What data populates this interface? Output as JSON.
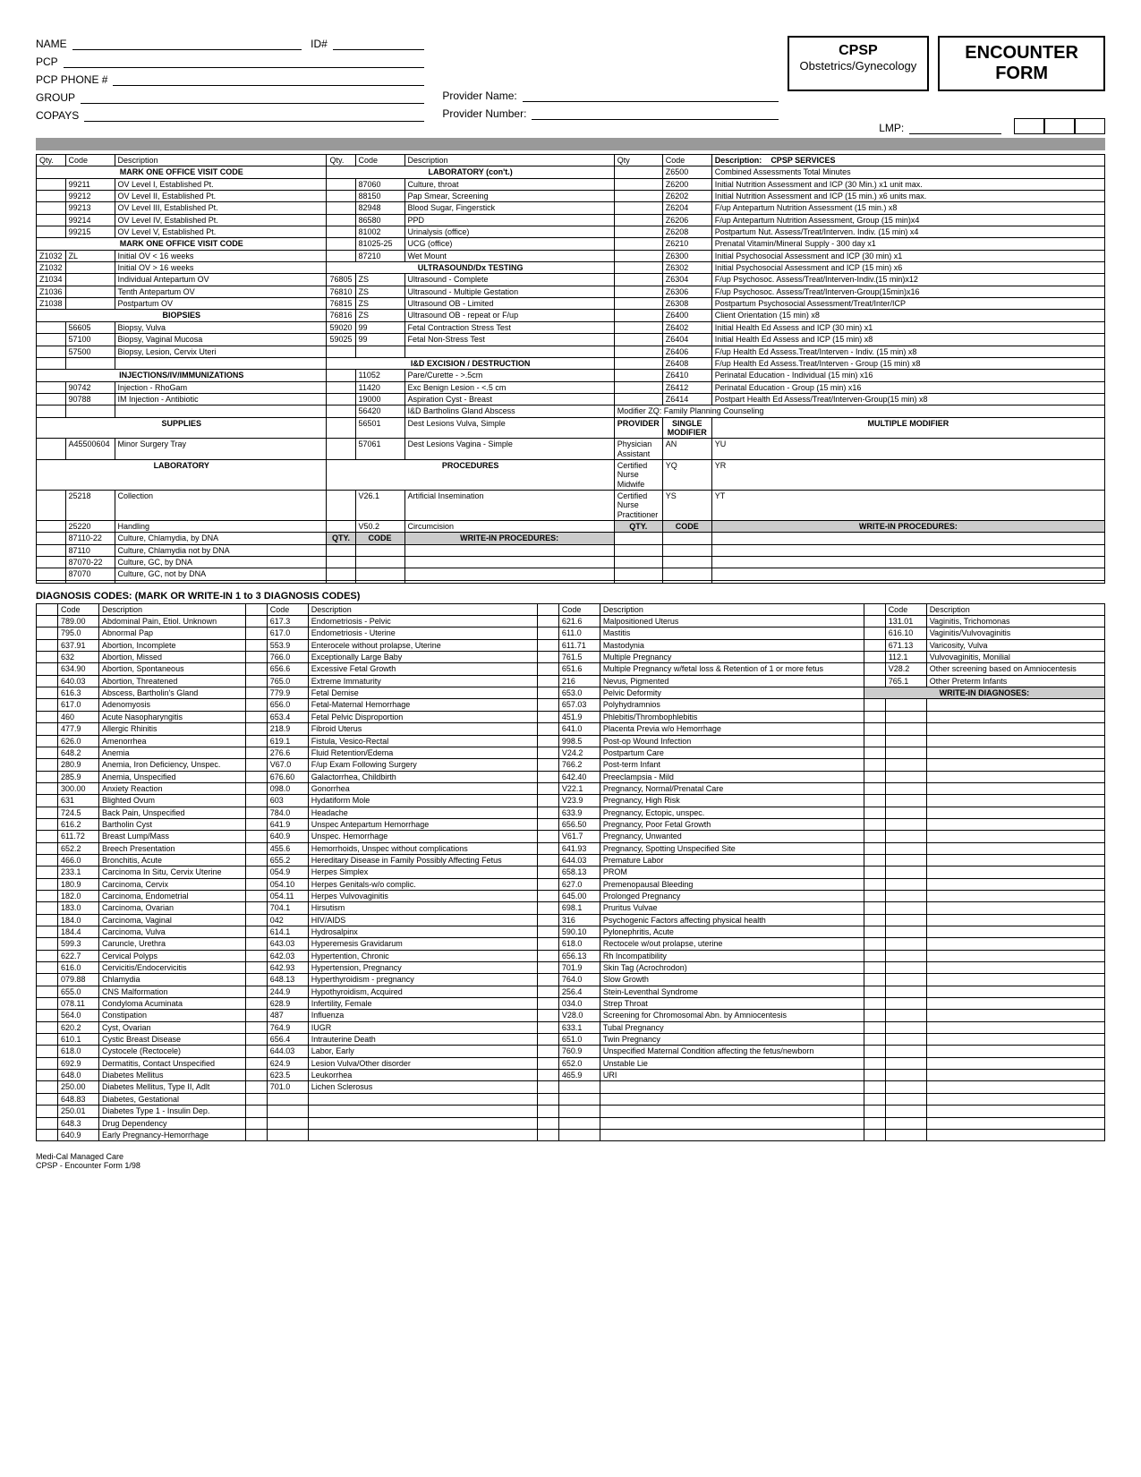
{
  "header": {
    "name_label": "NAME",
    "id_label": "ID#",
    "pcp_label": "PCP",
    "pcp_phone_label": "PCP PHONE #",
    "group_label": "GROUP",
    "copays_label": "COPAYS",
    "provider_name_label": "Provider Name:",
    "provider_number_label": "Provider Number:",
    "lmp_label": "LMP:",
    "cpsp_title": "CPSP",
    "cpsp_sub": "Obstetrics/Gynecology",
    "encounter_title": "ENCOUNTER FORM"
  },
  "col_headers": {
    "qty": "Qty.",
    "code": "Code",
    "desc": "Description",
    "qty2": "Qty",
    "cpsp": "CPSP SERVICES"
  },
  "sections": {
    "mark_one_1": "MARK ONE OFFICE VISIT CODE",
    "mark_one_2": "MARK ONE OFFICE VISIT CODE",
    "biopsies": "BIOPSIES",
    "injections": "INJECTIONS/IV/IMMUNIZATIONS",
    "supplies": "SUPPLIES",
    "laboratory": "LABORATORY",
    "lab_cont": "LABORATORY (con't.)",
    "ultrasound": "ULTRASOUND/Dx TESTING",
    "id_exc": "I&D EXCISION / DESTRUCTION",
    "procedures": "PROCEDURES",
    "write_in": "WRITE-IN PROCEDURES:",
    "provider": "PROVIDER",
    "single_mod": "SINGLE MODIFIER",
    "mult_mod": "MULTIPLE MODIFIER"
  },
  "ov_codes": [
    [
      "99211",
      "OV Level I, Established Pt."
    ],
    [
      "99212",
      "OV Level II, Established Pt."
    ],
    [
      "99213",
      "OV Level III, Established Pt."
    ],
    [
      "99214",
      "OV Level IV, Established Pt."
    ],
    [
      "99215",
      "OV Level V, Established Pt."
    ]
  ],
  "visit_codes": [
    [
      "Z1032",
      "ZL",
      "Initial OV < 16 weeks"
    ],
    [
      "Z1032",
      "",
      "Initial OV > 16 weeks"
    ],
    [
      "Z1034",
      "",
      "Individual Antepartum OV"
    ],
    [
      "Z1036",
      "",
      "Tenth Antepartum OV"
    ],
    [
      "Z1038",
      "",
      "Postpartum OV"
    ]
  ],
  "biopsies_rows": [
    [
      "56605",
      "Biopsy, Vulva"
    ],
    [
      "57100",
      "Biopsy, Vaginal Mucosa"
    ],
    [
      "57500",
      "Biopsy, Lesion, Cervix Uteri"
    ]
  ],
  "inj_rows": [
    [
      "90742",
      "Injection - RhoGam"
    ],
    [
      "90788",
      "IM Injection - Antibiotic"
    ]
  ],
  "supplies_rows": [
    [
      "A45500604",
      "Minor Surgery Tray"
    ]
  ],
  "lab_rows_left": [
    [
      "25218",
      "Collection"
    ],
    [
      "25220",
      "Handling"
    ],
    [
      "87110-22",
      "Culture, Chlamydia, by DNA"
    ],
    [
      "87110",
      "Culture, Chlamydia not by DNA"
    ],
    [
      "87070-22",
      "Culture, GC, by DNA"
    ],
    [
      "87070",
      "Culture, GC, not by DNA"
    ]
  ],
  "lab_cont_rows": [
    [
      "87060",
      "",
      "Culture, throat"
    ],
    [
      "88150",
      "",
      "Pap Smear, Screening"
    ],
    [
      "82948",
      "",
      "Blood Sugar, Fingerstick"
    ],
    [
      "86580",
      "",
      "PPD"
    ],
    [
      "81002",
      "",
      "Urinalysis (office)"
    ],
    [
      "81025-25",
      "",
      "UCG (office)"
    ],
    [
      "87210",
      "",
      "Wet Mount"
    ]
  ],
  "us_rows": [
    [
      "76805",
      "ZS",
      "Ultrasound - Complete"
    ],
    [
      "76810",
      "ZS",
      "Ultrasound - Multiple Gestation"
    ],
    [
      "76815",
      "ZS",
      "Ultrasound OB - Limited"
    ],
    [
      "76816",
      "ZS",
      "Ultrasound OB - repeat or F/up"
    ],
    [
      "59020",
      "99",
      "Fetal Contraction Stress Test"
    ],
    [
      "59025",
      "99",
      "Fetal Non-Stress Test"
    ]
  ],
  "id_rows": [
    [
      "11052",
      "Pare/Curette - >.5cm"
    ],
    [
      "11420",
      "Exc Benign Lesion - <.5 cm"
    ],
    [
      "19000",
      "Aspiration Cyst - Breast"
    ],
    [
      "56420",
      "I&D Bartholins Gland Abscess"
    ],
    [
      "56501",
      "Dest Lesions Vulva, Simple"
    ],
    [
      "57061",
      "Dest Lesions Vagina - Simple"
    ]
  ],
  "proc_rows": [
    [
      "V26.1",
      "Artificial Insemination"
    ],
    [
      "V50.2",
      "Circumcision"
    ]
  ],
  "cpsp_rows": [
    [
      "Z6500",
      "Combined Assessments Total Minutes"
    ],
    [
      "Z6200",
      "Initial Nutrition Assessment and ICP (30 Min.) x1 unit max."
    ],
    [
      "Z6202",
      "Initial Nutrition Assessment and ICP (15 min.) x6 units max."
    ],
    [
      "Z6204",
      "F/up Antepartum Nutrition Assessment (15 min.) x8"
    ],
    [
      "Z6206",
      "F/up Antepartum Nutrition Assessment, Group (15 min)x4"
    ],
    [
      "Z6208",
      "Postpartum Nut. Assess/Treat/Interven. Indiv. (15 min) x4"
    ],
    [
      "Z6210",
      "Prenatal Vitamin/Mineral Supply - 300 day x1"
    ],
    [
      "Z6300",
      "Initial Psychosocial Assessment and ICP (30 min) x1"
    ],
    [
      "Z6302",
      "Initial Psychosocial Assessment and ICP (15 min) x6"
    ],
    [
      "Z6304",
      "F/up Psychosoc. Assess/Treat/Interven-Indiv.(15 min)x12"
    ],
    [
      "Z6306",
      "F/up Psychosoc. Assess/Treat/Interven-Group(15min)x16"
    ],
    [
      "Z6308",
      "Postpartum Psychosocial Assessment/Treat/Inter/ICP"
    ],
    [
      "Z6400",
      "Client Orientation (15 min) x8"
    ],
    [
      "Z6402",
      "Initial Health Ed Assess and ICP (30 min) x1"
    ],
    [
      "Z6404",
      "Initial Health Ed Assess and ICP (15 min) x8"
    ],
    [
      "Z6406",
      "F/up Health Ed Assess.Treat/Interven - Indiv. (15 min)  x8"
    ],
    [
      "Z6408",
      "F/up Health Ed Assess.Treat/Interven - Group (15 min)  x8"
    ],
    [
      "Z6410",
      "Perinatal Education - Individual (15 min) x16"
    ],
    [
      "Z6412",
      "Perinatal Education - Group (15 min) x16"
    ],
    [
      "Z6414",
      "Postpart Health Ed Assess/Treat/Interven-Group(15 min) x8"
    ]
  ],
  "modifier_note": "Modifier ZQ:  Family Planning Counseling",
  "providers": [
    [
      "Physician Assistant",
      "AN",
      "YU"
    ],
    [
      "Certified Nurse Midwife",
      "YQ",
      "YR"
    ],
    [
      "Certified Nurse Practitioner",
      "YS",
      "YT"
    ]
  ],
  "diag_title": "DIAGNOSIS CODES:   (MARK OR WRITE-IN 1 to 3 DIAGNOSIS CODES)",
  "diag_headers": {
    "code": "Code",
    "desc": "Description"
  },
  "diag_col1": [
    [
      "789.00",
      "Abdominal Pain, Etiol. Unknown"
    ],
    [
      "795.0",
      "Abnormal Pap"
    ],
    [
      "637.91",
      "Abortion, Incomplete"
    ],
    [
      "632",
      "Abortion, Missed"
    ],
    [
      "634.90",
      "Abortion, Spontaneous"
    ],
    [
      "640.03",
      "Abortion, Threatened"
    ],
    [
      "616.3",
      "Abscess, Bartholin's Gland"
    ],
    [
      "617.0",
      "Adenomyosis"
    ],
    [
      "460",
      "Acute Nasopharyngitis"
    ],
    [
      "477.9",
      "Allergic  Rhinitis"
    ],
    [
      "626.0",
      "Amenorrhea"
    ],
    [
      "648.2",
      "Anemia"
    ],
    [
      "280.9",
      "Anemia, Iron Deficiency, Unspec."
    ],
    [
      "285.9",
      "Anemia, Unspecified"
    ],
    [
      "300.00",
      "Anxiety Reaction"
    ],
    [
      "631",
      "Blighted Ovum"
    ],
    [
      "724.5",
      "Back Pain, Unspecified"
    ],
    [
      "616.2",
      "Bartholin Cyst"
    ],
    [
      "611.72",
      "Breast Lump/Mass"
    ],
    [
      "652.2",
      "Breech Presentation"
    ],
    [
      "466.0",
      "Bronchitis, Acute"
    ],
    [
      "233.1",
      "Carcinoma In Situ, Cervix Uterine"
    ],
    [
      "180.9",
      "Carcinoma, Cervix"
    ],
    [
      "182.0",
      "Carcinoma, Endometrial"
    ],
    [
      "183.0",
      "Carcinoma, Ovarian"
    ],
    [
      "184.0",
      "Carcinoma, Vaginal"
    ],
    [
      "184.4",
      "Carcinoma, Vulva"
    ],
    [
      "599.3",
      "Caruncle, Urethra"
    ],
    [
      "622.7",
      "Cervical Polyps"
    ],
    [
      "616.0",
      "Cervicitis/Endocervicitis"
    ],
    [
      "079.88",
      "Chlamydia"
    ],
    [
      "655.0",
      "CNS Malformation"
    ],
    [
      "078.11",
      "Condyloma Acuminata"
    ],
    [
      "564.0",
      "Constipation"
    ],
    [
      "620.2",
      "Cyst, Ovarian"
    ],
    [
      "610.1",
      "Cystic Breast Disease"
    ],
    [
      "618.0",
      "Cystocele (Rectocele)"
    ],
    [
      "692.9",
      "Dermatitis, Contact Unspecified"
    ],
    [
      "648.0",
      "Diabetes Mellitus"
    ],
    [
      "250.00",
      "Diabetes Mellitus, Type II, Adlt"
    ],
    [
      "648.83",
      "Diabetes, Gestational"
    ],
    [
      "250.01",
      "Diabetes Type 1 - Insulin Dep."
    ],
    [
      "648.3",
      "Drug Dependency"
    ],
    [
      "640.9",
      "Early Pregnancy-Hemorrhage"
    ]
  ],
  "diag_col2": [
    [
      "617.3",
      "Endometriosis - Pelvic"
    ],
    [
      "617.0",
      "Endometriosis - Uterine"
    ],
    [
      "553.9",
      "Enterocele without prolapse, Uterine"
    ],
    [
      "766.0",
      "Exceptionally Large Baby"
    ],
    [
      "656.6",
      "Excessive Fetal Growth"
    ],
    [
      "765.0",
      "Extreme Immaturity"
    ],
    [
      "779.9",
      "Fetal Demise"
    ],
    [
      "656.0",
      "Fetal-Maternal Hemorrhage"
    ],
    [
      "653.4",
      "Fetal Pelvic Disproportion"
    ],
    [
      "218.9",
      "Fibroid Uterus"
    ],
    [
      "619.1",
      "Fistula, Vesico-Rectal"
    ],
    [
      "276.6",
      "Fluid Retention/Edema"
    ],
    [
      "V67.0",
      "F/up Exam Following Surgery"
    ],
    [
      "676.60",
      "Galactorrhea, Childbirth"
    ],
    [
      "098.0",
      "Gonorrhea"
    ],
    [
      "603",
      "Hydatiform Mole"
    ],
    [
      "784.0",
      "Headache"
    ],
    [
      "641.9",
      "Unspec Antepartum Hemorrhage"
    ],
    [
      "640.9",
      "Unspec. Hemorrhage"
    ],
    [
      "455.6",
      "Hemorrhoids, Unspec without complications"
    ],
    [
      "655.2",
      "Hereditary Disease in Family Possibly Affecting Fetus"
    ],
    [
      "054.9",
      "Herpes Simplex"
    ],
    [
      "054.10",
      "Herpes Genitals-w/o complic."
    ],
    [
      "054.11",
      "Herpes Vulvovaginitis"
    ],
    [
      "704.1",
      "Hirsutism"
    ],
    [
      "042",
      "HIV/AIDS"
    ],
    [
      "614.1",
      "Hydrosalpinx"
    ],
    [
      "643.03",
      "Hyperemesis Gravidarum"
    ],
    [
      "642.03",
      "Hypertention, Chronic"
    ],
    [
      "642.93",
      "Hypertension, Pregnancy"
    ],
    [
      "648.13",
      "Hyperthyroidism - pregnancy"
    ],
    [
      "244.9",
      "Hypothyroidism, Acquired"
    ],
    [
      "628.9",
      "Infertility, Female"
    ],
    [
      "487",
      "Influenza"
    ],
    [
      "764.9",
      "IUGR"
    ],
    [
      "656.4",
      "Intrauterine Death"
    ],
    [
      "644.03",
      "Labor, Early"
    ],
    [
      "624.9",
      "Lesion Vulva/Other disorder"
    ],
    [
      "623.5",
      "Leukorrhea"
    ],
    [
      "701.0",
      "Lichen Sclerosus"
    ]
  ],
  "diag_col3": [
    [
      "621.6",
      "Malpositioned Uterus"
    ],
    [
      "611.0",
      "Mastitis"
    ],
    [
      "611.71",
      "Mastodynia"
    ],
    [
      "761.5",
      "Multiple Pregnancy"
    ],
    [
      "651.6",
      "Multiple Pregnancy w/fetal loss & Retention of 1 or more fetus"
    ],
    [
      "216",
      "Nevus, Pigmented"
    ],
    [
      "653.0",
      "Pelvic Deformity"
    ],
    [
      "657.03",
      "Polyhydramnios"
    ],
    [
      "451.9",
      "Phlebitis/Thrombophlebitis"
    ],
    [
      "641.0",
      "Placenta Previa w/o Hemorrhage"
    ],
    [
      "998.5",
      "Post-op Wound Infection"
    ],
    [
      "V24.2",
      "Postpartum Care"
    ],
    [
      "766.2",
      "Post-term Infant"
    ],
    [
      "642.40",
      "Preeclampsia - Mild"
    ],
    [
      "V22.1",
      "Pregnancy, Normal/Prenatal Care"
    ],
    [
      "V23.9",
      "Pregnancy, High Risk"
    ],
    [
      "633.9",
      "Pregnancy, Ectopic, unspec."
    ],
    [
      "656.50",
      "Pregnancy, Poor Fetal Growth"
    ],
    [
      "V61.7",
      "Pregnancy, Unwanted"
    ],
    [
      "641.93",
      "Pregnancy, Spotting Unspecified Site"
    ],
    [
      "644.03",
      "Premature Labor"
    ],
    [
      "658.13",
      "PROM"
    ],
    [
      "627.0",
      "Premenopausal Bleeding"
    ],
    [
      "645.00",
      "Prolonged Pregnancy"
    ],
    [
      "698.1",
      "Pruritus Vulvae"
    ],
    [
      "316",
      "Psychogenic Factors affecting physical health"
    ],
    [
      "590.10",
      "Pylonephritis, Acute"
    ],
    [
      "618.0",
      "Rectocele w/out prolapse, uterine"
    ],
    [
      "656.13",
      "Rh Incompatibility"
    ],
    [
      "701.9",
      "Skin Tag (Acrochrodon)"
    ],
    [
      "764.0",
      "Slow Growth"
    ],
    [
      "256.4",
      "Stein-Leventhal Syndrome"
    ],
    [
      "034.0",
      "Strep Throat"
    ],
    [
      "V28.0",
      "Screening for Chromosomal Abn. by  Amniocentesis"
    ],
    [
      "633.1",
      "Tubal Pregnancy"
    ],
    [
      "651.0",
      "Twin Pregnancy"
    ],
    [
      "760.9",
      "Unspecified  Maternal Condition affecting the fetus/newborn"
    ],
    [
      "652.0",
      "Unstable Lie"
    ],
    [
      "465.9",
      "URI"
    ]
  ],
  "diag_col4": [
    [
      "131.01",
      "Vaginitis, Trichomonas"
    ],
    [
      "616.10",
      "Vaginitis/Vulvovaginitis"
    ],
    [
      "671.13",
      "Varicosity, Vulva"
    ],
    [
      "112.1",
      "Vulvovaginitis, Monilial"
    ],
    [
      "V28.2",
      "Other screening based on Amniocentesis"
    ],
    [
      "765.1",
      "Other Preterm Infants"
    ]
  ],
  "write_in_diag": "WRITE-IN DIAGNOSES:",
  "footer": {
    "l1": "Medi-Cal Managed Care",
    "l2": "CPSP - Encounter Form   1/98"
  }
}
